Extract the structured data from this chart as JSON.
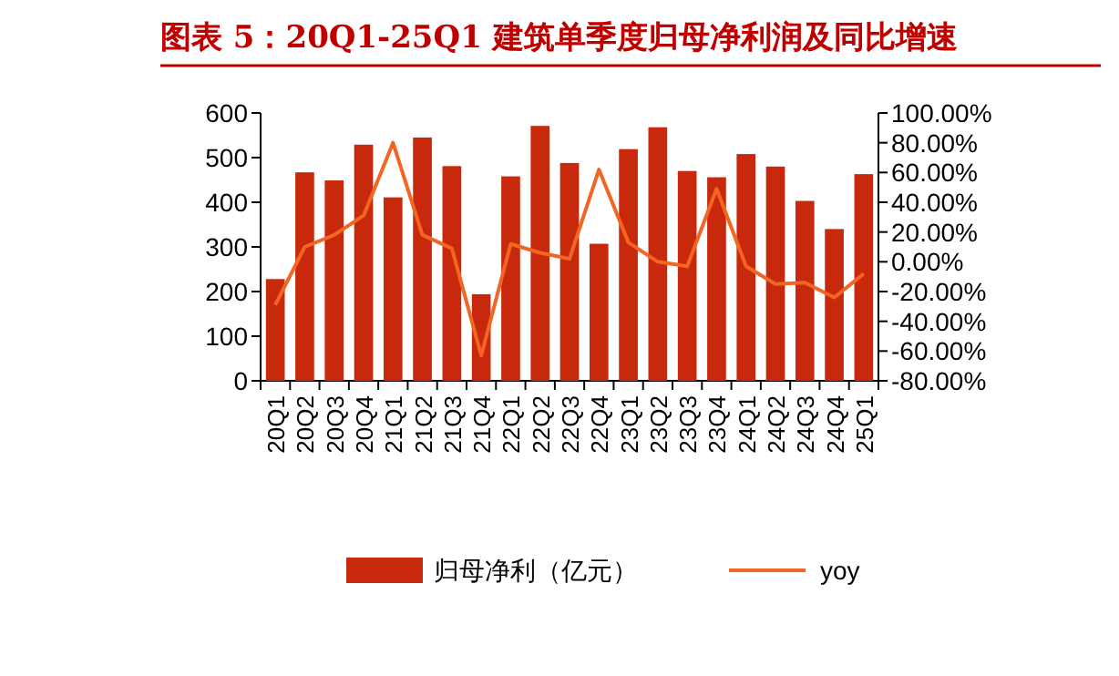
{
  "chart_data": {
    "type": "bar",
    "title": "图表 5：20Q1-25Q1 建筑单季度归母净利润及同比增速",
    "categories": [
      "20Q1",
      "20Q2",
      "20Q3",
      "20Q4",
      "21Q1",
      "21Q2",
      "21Q3",
      "21Q4",
      "22Q1",
      "22Q2",
      "22Q3",
      "22Q4",
      "23Q1",
      "23Q2",
      "23Q3",
      "23Q4",
      "24Q1",
      "24Q2",
      "24Q3",
      "24Q4",
      "25Q1"
    ],
    "series": [
      {
        "name": "归母净利（亿元）",
        "color": "#c8290c",
        "values": [
          228,
          467,
          449,
          529,
          411,
          545,
          481,
          194,
          458,
          571,
          488,
          307,
          519,
          568,
          470,
          456,
          508,
          480,
          403,
          340,
          463
        ]
      },
      {
        "name": "yoy",
        "type": "line",
        "axis": "y2",
        "color": "#f26522",
        "values": [
          -29,
          10,
          18,
          31,
          80,
          18,
          9,
          -63,
          12,
          6,
          2,
          62,
          13,
          0,
          -3,
          49,
          -3,
          -15,
          -14,
          -24,
          -8
        ]
      }
    ],
    "ylim": [
      0,
      600
    ],
    "yticks": [
      0,
      100,
      200,
      300,
      400,
      500,
      600
    ],
    "y2lim": [
      -80,
      100
    ],
    "y2ticks": [
      {
        "value": -80,
        "label": "-80.00%"
      },
      {
        "value": -60,
        "label": "-60.00%"
      },
      {
        "value": -40,
        "label": "-40.00%"
      },
      {
        "value": -20,
        "label": "-20.00%"
      },
      {
        "value": 0,
        "label": "0.00%"
      },
      {
        "value": 20,
        "label": "20.00%"
      },
      {
        "value": 40,
        "label": "40.00%"
      },
      {
        "value": 60,
        "label": "60.00%"
      },
      {
        "value": 80,
        "label": "80.00%"
      },
      {
        "value": 100,
        "label": "100.00%"
      }
    ],
    "grid": false,
    "legend": "bottom"
  }
}
